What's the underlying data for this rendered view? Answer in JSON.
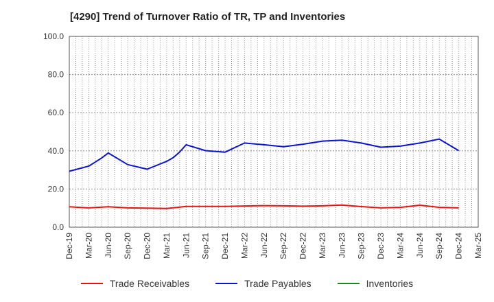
{
  "chart_data": {
    "type": "line",
    "title": "[4290]  Trend of Turnover Ratio of TR, TP and Inventories",
    "xlabel": "",
    "ylabel": "",
    "ylim": [
      0,
      100
    ],
    "y_ticks": [
      "0.0",
      "20.0",
      "40.0",
      "60.0",
      "80.0",
      "100.0"
    ],
    "x": [
      "Dec-19",
      "Jan-20",
      "Feb-20",
      "Mar-20",
      "Apr-20",
      "May-20",
      "Jun-20",
      "Jul-20",
      "Aug-20",
      "Sep-20",
      "Oct-20",
      "Nov-20",
      "Dec-20",
      "Jan-21",
      "Feb-21",
      "Mar-21",
      "Apr-21",
      "May-21",
      "Jun-21",
      "Jul-21",
      "Aug-21",
      "Sep-21",
      "Oct-21",
      "Nov-21",
      "Dec-21",
      "Jan-22",
      "Feb-22",
      "Mar-22",
      "Apr-22",
      "May-22",
      "Jun-22",
      "Jul-22",
      "Aug-22",
      "Sep-22",
      "Oct-22",
      "Nov-22",
      "Dec-22",
      "Jan-23",
      "Feb-23",
      "Mar-23",
      "Apr-23",
      "May-23",
      "Jun-23",
      "Jul-23",
      "Aug-23",
      "Sep-23",
      "Oct-23",
      "Nov-23",
      "Dec-23",
      "Jan-24",
      "Feb-24",
      "Mar-24",
      "Apr-24",
      "May-24",
      "Jun-24",
      "Jul-24",
      "Aug-24",
      "Sep-24",
      "Oct-24",
      "Nov-24",
      "Dec-24",
      "Jan-25",
      "Feb-25",
      "Mar-25"
    ],
    "x_tick_labels": [
      "Dec-19",
      "Mar-20",
      "Jun-20",
      "Sep-20",
      "Dec-20",
      "Mar-21",
      "Jun-21",
      "Sep-21",
      "Dec-21",
      "Mar-22",
      "Jun-22",
      "Sep-22",
      "Dec-22",
      "Mar-23",
      "Jun-23",
      "Sep-23",
      "Dec-23",
      "Mar-24",
      "Jun-24",
      "Sep-24",
      "Dec-24",
      "Mar-25"
    ],
    "grid": true,
    "legend_position": "bottom",
    "series": [
      {
        "name": "Trade Receivables",
        "color": "#e8120c",
        "x": [
          "Dec-19",
          "Mar-20",
          "Jun-20",
          "Sep-20",
          "Dec-20",
          "Mar-21",
          "Jun-21",
          "Sep-21",
          "Dec-21",
          "Mar-22",
          "Jun-22",
          "Sep-22",
          "Dec-22",
          "Mar-23",
          "Jun-23",
          "Sep-23",
          "Dec-23",
          "Mar-24",
          "Jun-24",
          "Sep-24",
          "Dec-24"
        ],
        "values": [
          10.7,
          10.1,
          10.7,
          10.1,
          10.0,
          9.8,
          10.9,
          10.9,
          10.9,
          11.1,
          11.3,
          11.2,
          11.0,
          11.2,
          11.6,
          10.8,
          10.1,
          10.4,
          11.5,
          10.4,
          10.1
        ]
      },
      {
        "name": "Trade Payables",
        "color": "#0a14d8",
        "x": [
          "Dec-19",
          "Mar-20",
          "Apr-20",
          "May-20",
          "Jun-20",
          "Sep-20",
          "Dec-20",
          "Mar-21",
          "Apr-21",
          "May-21",
          "Jun-21",
          "Sep-21",
          "Dec-21",
          "Mar-22",
          "Jun-22",
          "Sep-22",
          "Dec-22",
          "Mar-23",
          "Jun-23",
          "Sep-23",
          "Dec-23",
          "Mar-24",
          "Jun-24",
          "Sep-24",
          "Dec-24"
        ],
        "values": [
          29.3,
          32.0,
          34.1,
          36.3,
          38.9,
          32.8,
          30.4,
          34.5,
          36.4,
          39.4,
          43.2,
          40.1,
          39.3,
          44.1,
          43.2,
          42.2,
          43.5,
          45.1,
          45.6,
          44.1,
          41.9,
          42.5,
          44.1,
          46.2,
          40.1
        ]
      },
      {
        "name": "Inventories",
        "color": "#1a8c1a",
        "x": [],
        "values": []
      }
    ]
  }
}
